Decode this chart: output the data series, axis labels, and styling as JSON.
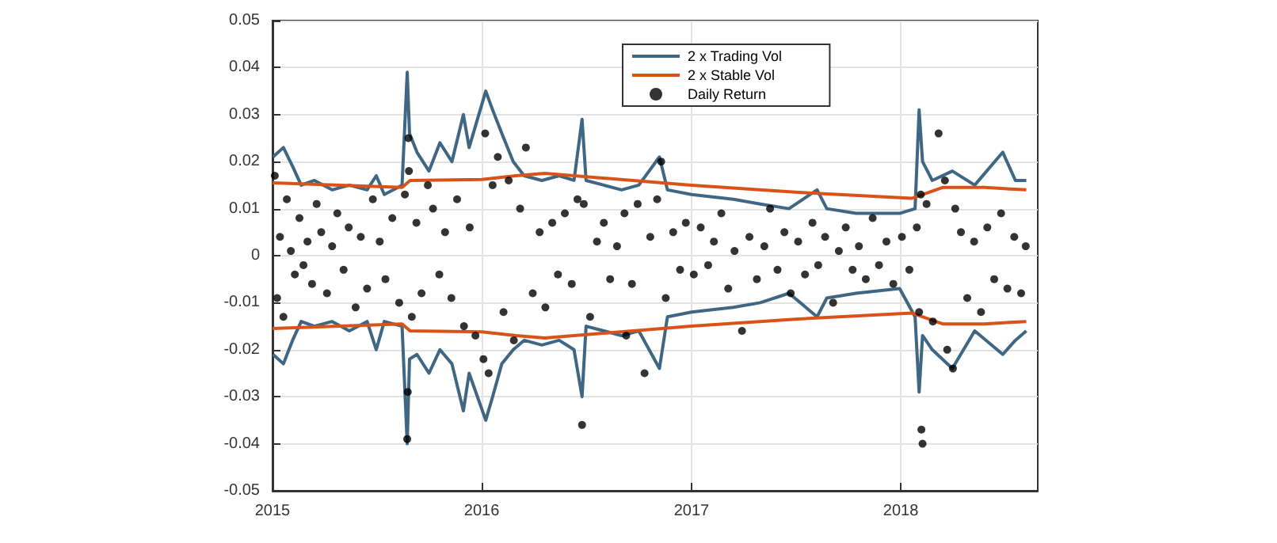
{
  "chart_data": {
    "type": "line",
    "xlim": [
      "2015-01-01",
      "2018-08-28"
    ],
    "xticks": [
      "2015",
      "2016",
      "2017",
      "2018"
    ],
    "ylim": [
      -0.05,
      0.05
    ],
    "yticks": [
      -0.05,
      -0.04,
      -0.03,
      -0.02,
      -0.01,
      0,
      0.01,
      0.02,
      0.03,
      0.04,
      0.05
    ],
    "grid": true,
    "legend": "top",
    "line_style": "solid",
    "marker": "none",
    "series": [
      {
        "name": "2 x Trading Vol",
        "color": "#3f6683",
        "x": [
          "2015-01-02",
          "2015-01-20",
          "2015-02-05",
          "2015-02-20",
          "2015-03-15",
          "2015-04-15",
          "2015-05-15",
          "2015-06-15",
          "2015-07-01",
          "2015-07-15",
          "2015-08-15",
          "2015-08-24",
          "2015-08-28",
          "2015-09-10",
          "2015-10-01",
          "2015-10-20",
          "2015-11-10",
          "2015-11-30",
          "2015-12-10",
          "2016-01-08",
          "2016-01-20",
          "2016-02-05",
          "2016-02-25",
          "2016-03-15",
          "2016-04-15",
          "2016-05-15",
          "2016-06-10",
          "2016-06-24",
          "2016-07-01",
          "2016-08-01",
          "2016-09-01",
          "2016-10-01",
          "2016-11-06",
          "2016-11-20",
          "2017-01-01",
          "2017-03-15",
          "2017-05-01",
          "2017-06-20",
          "2017-08-08",
          "2017-08-25",
          "2017-10-15",
          "2017-12-30",
          "2018-01-26",
          "2018-02-02",
          "2018-02-08",
          "2018-02-25",
          "2018-04-01",
          "2018-05-10",
          "2018-06-28",
          "2018-07-20",
          "2018-08-08"
        ],
        "values": [
          0.021,
          0.023,
          0.019,
          0.015,
          0.016,
          0.014,
          0.015,
          0.014,
          0.017,
          0.013,
          0.015,
          0.039,
          0.026,
          0.022,
          0.018,
          0.024,
          0.02,
          0.03,
          0.023,
          0.035,
          0.031,
          0.026,
          0.02,
          0.017,
          0.016,
          0.017,
          0.016,
          0.029,
          0.016,
          0.015,
          0.014,
          0.015,
          0.021,
          0.014,
          0.013,
          0.012,
          0.011,
          0.01,
          0.014,
          0.01,
          0.009,
          0.009,
          0.01,
          0.031,
          0.02,
          0.016,
          0.018,
          0.015,
          0.022,
          0.016,
          0.016
        ]
      },
      {
        "color": "#3f6683",
        "x": [
          "2015-01-02",
          "2015-01-20",
          "2015-02-05",
          "2015-02-20",
          "2015-03-15",
          "2015-04-15",
          "2015-05-15",
          "2015-06-15",
          "2015-07-01",
          "2015-07-15",
          "2015-08-15",
          "2015-08-24",
          "2015-08-28",
          "2015-09-10",
          "2015-10-01",
          "2015-10-20",
          "2015-11-10",
          "2015-11-30",
          "2015-12-10",
          "2016-01-08",
          "2016-01-20",
          "2016-02-05",
          "2016-02-25",
          "2016-03-15",
          "2016-04-15",
          "2016-05-15",
          "2016-06-10",
          "2016-06-24",
          "2016-07-01",
          "2016-08-01",
          "2016-09-01",
          "2016-10-01",
          "2016-11-06",
          "2016-11-20",
          "2017-01-01",
          "2017-03-15",
          "2017-05-01",
          "2017-06-20",
          "2017-08-08",
          "2017-08-25",
          "2017-10-15",
          "2017-12-30",
          "2018-01-26",
          "2018-02-02",
          "2018-02-08",
          "2018-02-25",
          "2018-04-01",
          "2018-05-10",
          "2018-06-28",
          "2018-07-20",
          "2018-08-08"
        ],
        "values": [
          -0.021,
          -0.023,
          -0.018,
          -0.014,
          -0.015,
          -0.014,
          -0.016,
          -0.014,
          -0.02,
          -0.014,
          -0.015,
          -0.04,
          -0.022,
          -0.021,
          -0.025,
          -0.02,
          -0.023,
          -0.033,
          -0.025,
          -0.035,
          -0.03,
          -0.023,
          -0.02,
          -0.018,
          -0.019,
          -0.018,
          -0.02,
          -0.03,
          -0.015,
          -0.016,
          -0.017,
          -0.016,
          -0.024,
          -0.013,
          -0.012,
          -0.011,
          -0.01,
          -0.008,
          -0.013,
          -0.009,
          -0.008,
          -0.007,
          -0.013,
          -0.029,
          -0.017,
          -0.02,
          -0.024,
          -0.016,
          -0.021,
          -0.018,
          -0.016
        ]
      },
      {
        "name": "2 x Stable Vol",
        "color": "#d95319",
        "x": [
          "2015-01-01",
          "2015-08-15",
          "2015-08-29",
          "2016-01-01",
          "2016-03-01",
          "2016-04-20",
          "2017-01-01",
          "2017-07-01",
          "2018-01-20",
          "2018-03-15",
          "2018-05-27",
          "2018-08-08"
        ],
        "values": [
          0.0155,
          0.0145,
          0.016,
          0.0162,
          0.017,
          0.0175,
          0.015,
          0.0135,
          0.0122,
          0.0145,
          0.0145,
          0.014
        ]
      },
      {
        "color": "#d95319",
        "x": [
          "2015-01-01",
          "2015-08-15",
          "2015-08-29",
          "2016-01-01",
          "2016-03-01",
          "2016-04-20",
          "2017-01-01",
          "2017-07-01",
          "2018-01-20",
          "2018-03-15",
          "2018-05-27",
          "2018-08-08"
        ],
        "values": [
          -0.0155,
          -0.0145,
          -0.016,
          -0.0162,
          -0.017,
          -0.0175,
          -0.015,
          -0.0135,
          -0.0122,
          -0.0145,
          -0.0145,
          -0.014
        ]
      },
      {
        "name": "Daily Return",
        "color": "#000000",
        "type": "scatter",
        "marker": "circle",
        "x": [
          "2015-01-05",
          "2015-01-09",
          "2015-01-14",
          "2015-01-20",
          "2015-01-26",
          "2015-02-02",
          "2015-02-09",
          "2015-02-17",
          "2015-02-24",
          "2015-03-03",
          "2015-03-11",
          "2015-03-19",
          "2015-03-27",
          "2015-04-06",
          "2015-04-15",
          "2015-04-24",
          "2015-05-05",
          "2015-05-14",
          "2015-05-26",
          "2015-06-04",
          "2015-06-15",
          "2015-06-25",
          "2015-07-07",
          "2015-07-17",
          "2015-07-29",
          "2015-08-10",
          "2015-08-20",
          "2015-08-24",
          "2015-08-25",
          "2015-08-26",
          "2015-08-27",
          "2015-09-01",
          "2015-09-09",
          "2015-09-18",
          "2015-09-29",
          "2015-10-08",
          "2015-10-19",
          "2015-10-29",
          "2015-11-09",
          "2015-11-19",
          "2015-12-01",
          "2015-12-11",
          "2015-12-21",
          "2016-01-04",
          "2016-01-07",
          "2016-01-13",
          "2016-01-20",
          "2016-01-29",
          "2016-02-08",
          "2016-02-17",
          "2016-02-26",
          "2016-03-08",
          "2016-03-18",
          "2016-03-30",
          "2016-04-11",
          "2016-04-21",
          "2016-05-03",
          "2016-05-13",
          "2016-05-25",
          "2016-06-06",
          "2016-06-16",
          "2016-06-24",
          "2016-06-27",
          "2016-07-08",
          "2016-07-20",
          "2016-08-01",
          "2016-08-12",
          "2016-08-24",
          "2016-09-06",
          "2016-09-09",
          "2016-09-19",
          "2016-09-29",
          "2016-10-11",
          "2016-10-21",
          "2016-11-02",
          "2016-11-09",
          "2016-11-17",
          "2016-11-30",
          "2016-12-12",
          "2016-12-22",
          "2017-01-05",
          "2017-01-17",
          "2017-01-30",
          "2017-02-09",
          "2017-02-22",
          "2017-03-06",
          "2017-03-17",
          "2017-03-30",
          "2017-04-12",
          "2017-04-25",
          "2017-05-08",
          "2017-05-18",
          "2017-05-31",
          "2017-06-12",
          "2017-06-23",
          "2017-07-06",
          "2017-07-18",
          "2017-07-31",
          "2017-08-10",
          "2017-08-22",
          "2017-09-05",
          "2017-09-15",
          "2017-09-27",
          "2017-10-09",
          "2017-10-20",
          "2017-11-01",
          "2017-11-13",
          "2017-11-24",
          "2017-12-07",
          "2017-12-19",
          "2018-01-03",
          "2018-01-16",
          "2018-01-29",
          "2018-02-02",
          "2018-02-05",
          "2018-02-06",
          "2018-02-08",
          "2018-02-15",
          "2018-02-26",
          "2018-03-08",
          "2018-03-19",
          "2018-03-23",
          "2018-04-02",
          "2018-04-06",
          "2018-04-16",
          "2018-04-27",
          "2018-05-09",
          "2018-05-21",
          "2018-06-01",
          "2018-06-13",
          "2018-06-25",
          "2018-07-06",
          "2018-07-18",
          "2018-07-30",
          "2018-08-07"
        ],
        "values": [
          0.017,
          -0.009,
          0.004,
          -0.013,
          0.012,
          0.001,
          -0.004,
          0.008,
          -0.002,
          0.003,
          -0.006,
          0.011,
          0.005,
          -0.008,
          0.002,
          0.009,
          -0.003,
          0.006,
          -0.011,
          0.004,
          -0.007,
          0.012,
          0.003,
          -0.005,
          0.008,
          -0.01,
          0.013,
          -0.039,
          -0.029,
          0.025,
          0.018,
          -0.013,
          0.007,
          -0.008,
          0.015,
          0.01,
          -0.004,
          0.005,
          -0.009,
          0.012,
          -0.015,
          0.006,
          -0.017,
          -0.022,
          0.026,
          -0.025,
          0.015,
          0.021,
          -0.012,
          0.016,
          -0.018,
          0.01,
          0.023,
          -0.008,
          0.005,
          -0.011,
          0.007,
          -0.004,
          0.009,
          -0.006,
          0.012,
          -0.036,
          0.011,
          -0.013,
          0.003,
          0.007,
          -0.005,
          0.002,
          0.009,
          -0.017,
          -0.006,
          0.011,
          -0.025,
          0.004,
          0.012,
          0.02,
          -0.009,
          0.005,
          -0.003,
          0.007,
          -0.004,
          0.006,
          -0.002,
          0.003,
          0.009,
          -0.007,
          0.001,
          -0.016,
          0.004,
          -0.005,
          0.002,
          0.01,
          -0.003,
          0.005,
          -0.008,
          0.003,
          -0.004,
          0.007,
          -0.002,
          0.004,
          -0.01,
          0.001,
          0.006,
          -0.003,
          0.002,
          -0.005,
          0.008,
          -0.002,
          0.003,
          -0.006,
          0.004,
          -0.003,
          0.006,
          -0.012,
          0.013,
          -0.037,
          -0.04,
          0.011,
          -0.014,
          0.026,
          0.016,
          -0.02,
          -0.024,
          0.01,
          0.005,
          -0.009,
          0.003,
          -0.012,
          0.006,
          -0.005,
          0.009,
          -0.007,
          0.004,
          -0.008,
          0.002
        ]
      }
    ]
  }
}
